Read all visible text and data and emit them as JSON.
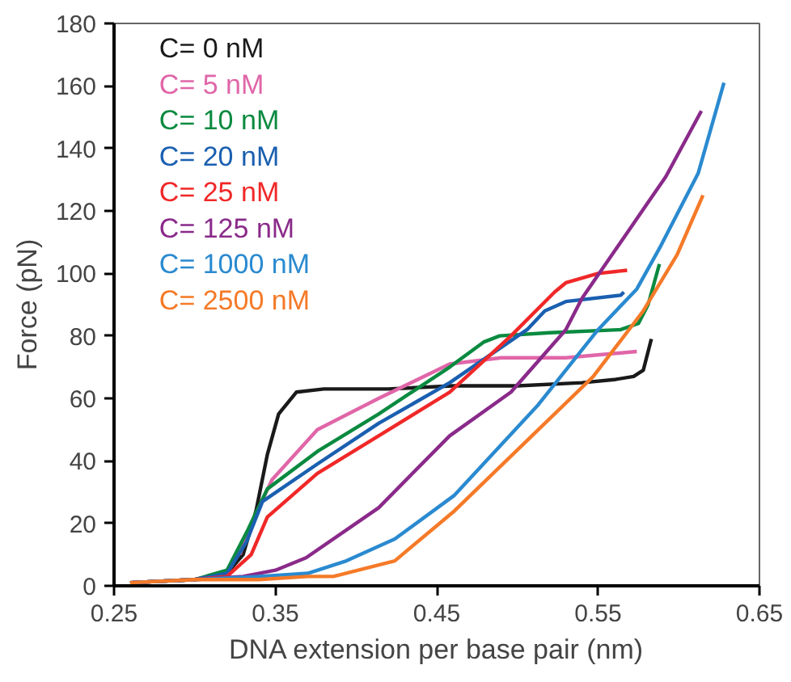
{
  "chart_data": {
    "type": "line",
    "xlabel": "DNA extension per base pair (nm)",
    "ylabel": "Force (pN)",
    "xlim": [
      0.25,
      0.65
    ],
    "ylim": [
      0,
      180
    ],
    "xticks": [
      {
        "value": 0.25,
        "label": "0.25"
      },
      {
        "value": 0.35,
        "label": "0.35"
      },
      {
        "value": 0.45,
        "label": "0.45"
      },
      {
        "value": 0.55,
        "label": "0.55"
      },
      {
        "value": 0.65,
        "label": "0.65"
      }
    ],
    "yticks": [
      0,
      20,
      40,
      60,
      80,
      100,
      120,
      140,
      160,
      180
    ],
    "grid": false,
    "legend": "top left",
    "marker": "none",
    "line_style": "solid",
    "series": [
      {
        "name": "C= 0 nM",
        "color": "#1a1a1a",
        "x": [
          0.26,
          0.3,
          0.32,
          0.33,
          0.338,
          0.345,
          0.352,
          0.363,
          0.38,
          0.42,
          0.46,
          0.5,
          0.54,
          0.56,
          0.572,
          0.578,
          0.583
        ],
        "values": [
          1,
          2,
          4,
          10,
          24,
          42,
          55,
          62,
          63,
          63,
          64,
          64,
          65,
          66,
          67,
          69,
          79
        ]
      },
      {
        "name": "C= 5 nM",
        "color": "#e066a8",
        "x": [
          0.328,
          0.335,
          0.348,
          0.376,
          0.414,
          0.458,
          0.49,
          0.53,
          0.574
        ],
        "values": [
          10,
          20,
          34,
          50,
          60,
          71,
          73,
          73,
          75
        ]
      },
      {
        "name": "C= 10 nM",
        "color": "#0a8a40",
        "x": [
          0.26,
          0.3,
          0.32,
          0.333,
          0.345,
          0.376,
          0.414,
          0.458,
          0.479,
          0.489,
          0.52,
          0.564,
          0.575,
          0.581,
          0.588
        ],
        "values": [
          1,
          2,
          5,
          18,
          31,
          43,
          55,
          70,
          78,
          80,
          81,
          82,
          84,
          90,
          103
        ]
      },
      {
        "name": "C= 20 nM",
        "color": "#1a5fb0",
        "x": [
          0.26,
          0.3,
          0.32,
          0.332,
          0.342,
          0.376,
          0.414,
          0.458,
          0.506,
          0.517,
          0.53,
          0.564,
          0.566
        ],
        "values": [
          1,
          2,
          4,
          14,
          27,
          39,
          52,
          65,
          82,
          88,
          91,
          93,
          94
        ]
      },
      {
        "name": "C= 25 nM",
        "color": "#f02828",
        "x": [
          0.26,
          0.3,
          0.32,
          0.335,
          0.345,
          0.376,
          0.414,
          0.458,
          0.496,
          0.523,
          0.53,
          0.55,
          0.568
        ],
        "values": [
          1,
          2,
          3,
          10,
          22,
          36,
          48,
          62,
          80,
          94,
          97,
          100,
          101
        ]
      },
      {
        "name": "C= 125 nM",
        "color": "#8a2a8a",
        "x": [
          0.26,
          0.3,
          0.33,
          0.35,
          0.369,
          0.414,
          0.458,
          0.496,
          0.53,
          0.54,
          0.564,
          0.592,
          0.614
        ],
        "values": [
          1,
          2,
          3,
          5,
          9,
          25,
          48,
          62,
          82,
          92,
          110,
          131,
          152
        ]
      },
      {
        "name": "C= 1000 nM",
        "color": "#2a8ad0",
        "x": [
          0.26,
          0.3,
          0.34,
          0.37,
          0.394,
          0.424,
          0.461,
          0.513,
          0.55,
          0.574,
          0.588,
          0.612,
          0.628
        ],
        "values": [
          1,
          2,
          3,
          4,
          8,
          15,
          29,
          58,
          82,
          95,
          108,
          132,
          161
        ]
      },
      {
        "name": "C= 2500 nM",
        "color": "#f57a28",
        "x": [
          0.26,
          0.3,
          0.34,
          0.37,
          0.386,
          0.424,
          0.461,
          0.513,
          0.547,
          0.578,
          0.599,
          0.615
        ],
        "values": [
          1,
          2,
          2,
          3,
          3,
          8,
          24,
          50,
          67,
          88,
          106,
          125
        ]
      }
    ]
  }
}
